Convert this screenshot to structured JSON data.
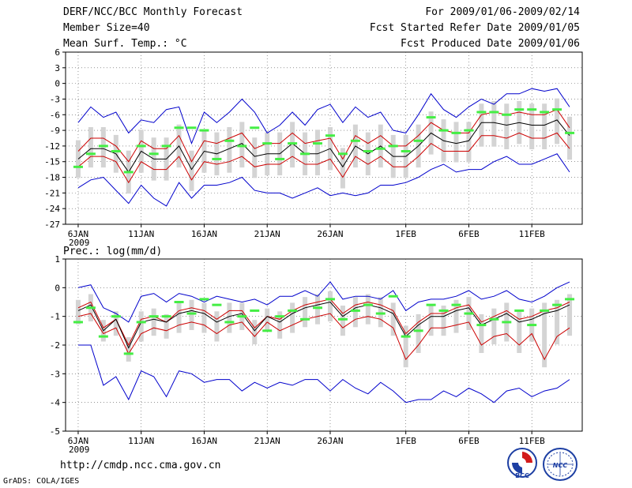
{
  "header": {
    "title": "DERF/NCC/BCC Monthly Forecast",
    "member_size": "Member Size=40",
    "variable": "Mean Surf. Temp.: °C",
    "period": "For 2009/01/06-2009/02/14",
    "started": "Fcst Started Refer Date 2009/01/05",
    "produced": "Fcst Produced Date 2009/01/06"
  },
  "footer": {
    "url": "http://cmdp.ncc.cma.gov.cn",
    "grads": "GrADS: COLA/IGES",
    "logo_left": "BCC",
    "logo_right": "NCC"
  },
  "colors": {
    "envelope": "#0000cc",
    "spread": "#cc0000",
    "mean": "#000000",
    "observed": "#44ee44",
    "box": "#d4d4d4",
    "grid": "#555555"
  },
  "chart_data": [
    {
      "type": "line",
      "title": "Mean Surf. Temp.: °C",
      "xlabel": "",
      "ylabel": "",
      "x_tick_labels": [
        "6JAN",
        "11JAN",
        "16JAN",
        "21JAN",
        "26JAN",
        "1FEB",
        "6FEB",
        "11FEB"
      ],
      "x_tick_days": [
        1,
        6,
        11,
        16,
        21,
        27,
        32,
        37
      ],
      "x_sublabel": "2009",
      "xlim": [
        0,
        41
      ],
      "ylim": [
        -27,
        6
      ],
      "yticks": [
        6,
        3,
        0,
        -3,
        -6,
        -9,
        -12,
        -15,
        -18,
        -21,
        -24,
        -27
      ],
      "days": [
        1,
        2,
        3,
        4,
        5,
        6,
        7,
        8,
        9,
        10,
        11,
        12,
        13,
        14,
        15,
        16,
        17,
        18,
        19,
        20,
        21,
        22,
        23,
        24,
        25,
        26,
        27,
        28,
        29,
        30,
        31,
        32,
        33,
        34,
        35,
        36,
        37,
        38,
        39,
        40
      ],
      "series": [
        {
          "name": "ensemble max",
          "values": [
            -7.5,
            -4.5,
            -6.5,
            -5.5,
            -9.5,
            -7,
            -7.5,
            -5,
            -4.5,
            -11.5,
            -5.5,
            -7.5,
            -5.5,
            -3,
            -5.5,
            -9.5,
            -8,
            -5.5,
            -8,
            -5,
            -4,
            -7.5,
            -4.5,
            -6.5,
            -5.5,
            -9,
            -9.5,
            -6,
            -2,
            -5,
            -6.5,
            -4.5,
            -3,
            -4,
            -2,
            -2,
            -1,
            -1.5,
            -1,
            -4.5
          ]
        },
        {
          "name": "upper spread",
          "values": [
            -13,
            -10.5,
            -10.5,
            -12,
            -15,
            -11,
            -12.5,
            -12.5,
            -10,
            -15,
            -11,
            -11.5,
            -10.5,
            -9.5,
            -12.5,
            -11.5,
            -11.5,
            -9.5,
            -11.5,
            -11,
            -10.5,
            -14.5,
            -10,
            -11.5,
            -10,
            -12,
            -12,
            -10,
            -7.5,
            -9,
            -9.5,
            -9.5,
            -6,
            -5.5,
            -6,
            -5.5,
            -6,
            -6,
            -5,
            -8.5
          ]
        },
        {
          "name": "ensemble mean",
          "values": [
            -14.5,
            -12.5,
            -12.5,
            -13.5,
            -17,
            -13,
            -14.5,
            -14.5,
            -12,
            -16.5,
            -13,
            -13.5,
            -12.5,
            -11.5,
            -14,
            -13.5,
            -13.5,
            -11.5,
            -13.5,
            -13.5,
            -12.5,
            -16,
            -12,
            -13.5,
            -12,
            -14,
            -14,
            -12,
            -9.5,
            -11,
            -11.5,
            -11,
            -7.5,
            -7.5,
            -8,
            -7.5,
            -8,
            -8,
            -7,
            -10
          ]
        },
        {
          "name": "lower spread",
          "values": [
            -16,
            -14,
            -14,
            -15,
            -19,
            -15,
            -16.5,
            -16.5,
            -14,
            -18.5,
            -15,
            -15.5,
            -15,
            -14,
            -16,
            -15.5,
            -15.5,
            -14,
            -15.5,
            -15.5,
            -14.5,
            -18,
            -14,
            -15.5,
            -14,
            -16,
            -16,
            -14,
            -11.5,
            -13,
            -13,
            -13,
            -10,
            -10,
            -10.5,
            -9.5,
            -10.5,
            -10.5,
            -9.5,
            -12.5
          ]
        },
        {
          "name": "ensemble min",
          "values": [
            -20,
            -18.5,
            -18,
            -20.5,
            -23,
            -19.5,
            -22,
            -23.5,
            -19,
            -22,
            -19.5,
            -19.5,
            -19,
            -18,
            -20.5,
            -21,
            -21,
            -22,
            -21,
            -20,
            -21.5,
            -21,
            -21.5,
            -21,
            -19.5,
            -19.5,
            -19,
            -18,
            -16.5,
            -15.5,
            -17,
            -16.5,
            -16.5,
            -15,
            -14,
            -15.5,
            -15.5,
            -14.5,
            -13.5,
            -17
          ]
        },
        {
          "name": "observed",
          "values": [
            -16,
            -13.5,
            -12,
            -13,
            -17,
            -12,
            -13.5,
            -12,
            -8.5,
            -8.5,
            -9,
            -14.5,
            -11,
            -12,
            -8.5,
            -11.5,
            -14.5,
            -11.5,
            -13.5,
            -11.5,
            -10,
            -13.5,
            -11,
            -13,
            -12.5,
            -12,
            -13,
            -11,
            -6.5,
            -9,
            -9.5,
            -9,
            -5.5,
            -5.5,
            -6,
            -5,
            -5,
            -5.5,
            -5,
            -9.5
          ]
        }
      ]
    },
    {
      "type": "line",
      "title": "Prec.: log(mm/d)",
      "xlabel": "",
      "ylabel": "",
      "x_tick_labels": [
        "6JAN",
        "11JAN",
        "16JAN",
        "21JAN",
        "26JAN",
        "1FEB",
        "6FEB",
        "11FEB"
      ],
      "x_tick_days": [
        1,
        6,
        11,
        16,
        21,
        27,
        32,
        37
      ],
      "x_sublabel": "2009",
      "xlim": [
        0,
        41
      ],
      "ylim": [
        -5,
        1
      ],
      "yticks": [
        1,
        0,
        -1,
        -2,
        -3,
        -4,
        -5
      ],
      "days": [
        1,
        2,
        3,
        4,
        5,
        6,
        7,
        8,
        9,
        10,
        11,
        12,
        13,
        14,
        15,
        16,
        17,
        18,
        19,
        20,
        21,
        22,
        23,
        24,
        25,
        26,
        27,
        28,
        29,
        30,
        31,
        32,
        33,
        34,
        35,
        36,
        37,
        38,
        39,
        40
      ],
      "series": [
        {
          "name": "ensemble max",
          "values": [
            0,
            0.1,
            -0.7,
            -0.9,
            -1.2,
            -0.3,
            -0.2,
            -0.5,
            -0.2,
            -0.3,
            -0.5,
            -0.3,
            -0.4,
            -0.5,
            -0.4,
            -0.6,
            -0.3,
            -0.3,
            -0.1,
            -0.3,
            0.2,
            -0.4,
            -0.3,
            -0.3,
            -0.4,
            -0.1,
            -0.8,
            -0.5,
            -0.4,
            -0.4,
            -0.3,
            -0.1,
            -0.4,
            -0.3,
            -0.1,
            -0.4,
            -0.5,
            -0.3,
            0,
            0.2
          ]
        },
        {
          "name": "upper spread",
          "values": [
            -0.7,
            -0.5,
            -1.4,
            -1.1,
            -2,
            -1.1,
            -1,
            -1.2,
            -0.8,
            -0.7,
            -0.8,
            -1.1,
            -0.8,
            -0.8,
            -1.4,
            -1,
            -1.1,
            -0.8,
            -0.6,
            -0.5,
            -0.4,
            -0.9,
            -0.6,
            -0.5,
            -0.6,
            -0.8,
            -1.6,
            -1.2,
            -0.9,
            -0.9,
            -0.7,
            -0.6,
            -1.2,
            -1,
            -0.8,
            -1.1,
            -1,
            -0.8,
            -0.7,
            -0.5
          ]
        },
        {
          "name": "ensemble mean",
          "values": [
            -0.8,
            -0.6,
            -1.5,
            -1.1,
            -2.1,
            -1.2,
            -1.1,
            -1.2,
            -0.9,
            -0.8,
            -0.9,
            -1.2,
            -1,
            -0.9,
            -1.5,
            -1,
            -1.2,
            -0.9,
            -0.7,
            -0.6,
            -0.5,
            -1,
            -0.7,
            -0.6,
            -0.7,
            -0.9,
            -1.7,
            -1.3,
            -1,
            -1,
            -0.8,
            -0.7,
            -1.3,
            -1.1,
            -0.9,
            -1.2,
            -1.1,
            -0.9,
            -0.8,
            -0.6
          ]
        },
        {
          "name": "lower spread",
          "values": [
            -1,
            -0.9,
            -1.6,
            -1.4,
            -2.3,
            -1.6,
            -1.4,
            -1.5,
            -1.3,
            -1.2,
            -1.3,
            -1.6,
            -1.3,
            -1.2,
            -1.7,
            -1.2,
            -1.5,
            -1.3,
            -1.1,
            -1,
            -0.9,
            -1.4,
            -1.1,
            -1,
            -1.1,
            -1.4,
            -2.5,
            -2,
            -1.4,
            -1.4,
            -1.3,
            -1.2,
            -2,
            -1.7,
            -1.6,
            -2,
            -1.6,
            -2.5,
            -1.7,
            -1.4
          ]
        },
        {
          "name": "ensemble min",
          "values": [
            -2,
            -2,
            -3.4,
            -3.1,
            -3.9,
            -2.9,
            -3.1,
            -3.8,
            -2.9,
            -3,
            -3.3,
            -3.2,
            -3.2,
            -3.6,
            -3.3,
            -3.5,
            -3.3,
            -3.4,
            -3.2,
            -3.2,
            -3.6,
            -3.2,
            -3.5,
            -3.7,
            -3.3,
            -3.6,
            -4,
            -3.9,
            -3.9,
            -3.6,
            -3.8,
            -3.5,
            -3.7,
            -4,
            -3.6,
            -3.5,
            -3.8,
            -3.6,
            -3.5,
            -3.2
          ]
        },
        {
          "name": "observed",
          "values": [
            -1.2,
            -0.7,
            -1.7,
            -1,
            -2.3,
            -1.2,
            -1,
            -1,
            -0.5,
            -0.9,
            -0.4,
            -0.6,
            -1.2,
            -1,
            -0.8,
            -1.5,
            -1,
            -0.8,
            -1.1,
            -0.7,
            -0.4,
            -1.1,
            -0.8,
            -0.6,
            -0.9,
            -0.3,
            -1.7,
            -1.5,
            -0.6,
            -0.8,
            -0.6,
            -0.9,
            -1.3,
            -1.1,
            -1.2,
            -0.8,
            -1.3,
            -0.8,
            -0.6,
            -0.4
          ]
        }
      ]
    }
  ]
}
